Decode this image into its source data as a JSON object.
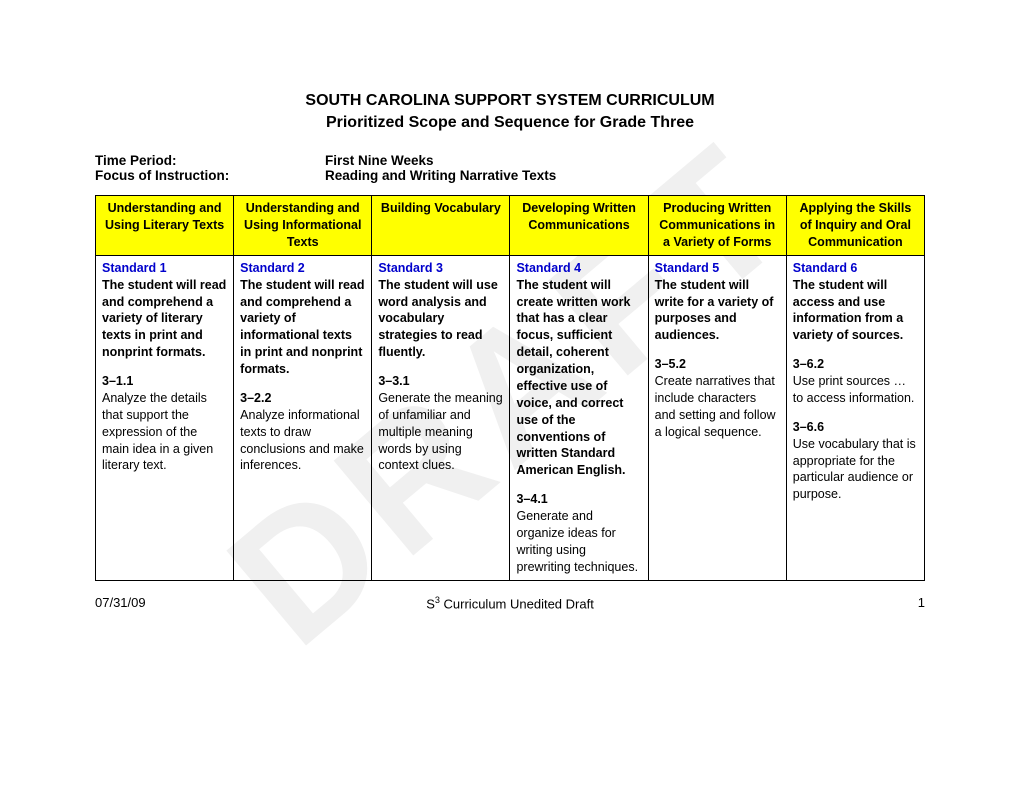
{
  "watermark": "DRAFT",
  "title": {
    "line1": "SOUTH CAROLINA SUPPORT SYSTEM CURRICULUM",
    "line2": "Prioritized Scope and Sequence for Grade Three"
  },
  "meta": {
    "timePeriodLabel": "Time Period:",
    "timePeriodValue": "First Nine Weeks",
    "focusLabel": "Focus of Instruction:",
    "focusValue": "Reading and Writing Narrative Texts"
  },
  "table": {
    "headerBg": "#ffff00",
    "borderColor": "#000000",
    "stdTitleColor": "#0000cc",
    "columns": [
      "Understanding and Using Literary Texts",
      "Understanding and Using Informational Texts",
      "Building Vocabulary",
      "Developing Written Communications",
      "Producing Written Communications in a Variety of Forms",
      "Applying the Skills of Inquiry and Oral Communication"
    ],
    "cells": [
      {
        "std": "Standard 1",
        "desc": "The student will read and comprehend a variety of literary texts in print and nonprint formats.",
        "items": [
          {
            "code": "3–1.1",
            "text": "Analyze the details that support the expression of the main idea in a given literary text."
          }
        ]
      },
      {
        "std": "Standard 2",
        "desc": "The student will read and comprehend a variety of informational texts in print and nonprint formats.",
        "items": [
          {
            "code": "3–2.2",
            "text": "Analyze informational texts to draw conclusions and make inferences."
          }
        ]
      },
      {
        "std": "Standard 3",
        "desc": "The student will use word analysis and vocabulary strategies to read fluently.",
        "items": [
          {
            "code": "3–3.1",
            "text": "Generate the meaning of unfamiliar and multiple meaning words by using context clues."
          }
        ]
      },
      {
        "std": "Standard 4",
        "desc": "The student will create written work that has a clear focus, sufficient detail, coherent organization, effective use of voice, and correct use of the conventions of written Standard American English.",
        "items": [
          {
            "code": "3–4.1",
            "text": "Generate and organize ideas for writing using prewriting techniques."
          }
        ]
      },
      {
        "std": "Standard 5",
        "desc": "The student will write for a variety of purposes and audiences.",
        "items": [
          {
            "code": "3–5.2",
            "text": "Create narratives that include characters and setting and follow a logical sequence."
          }
        ]
      },
      {
        "std": "Standard 6",
        "desc": "The student will access and use information from a variety of sources.",
        "items": [
          {
            "code": "3–6.2",
            "text": "Use print sources … to access information."
          },
          {
            "code": "3–6.6",
            "text": "Use vocabulary that is appropriate for the particular audience or purpose."
          }
        ]
      }
    ]
  },
  "footer": {
    "date": "07/31/09",
    "page": "1",
    "centerPrefix": "S",
    "centerSup": "3",
    "centerSuffix": " Curriculum Unedited Draft"
  }
}
